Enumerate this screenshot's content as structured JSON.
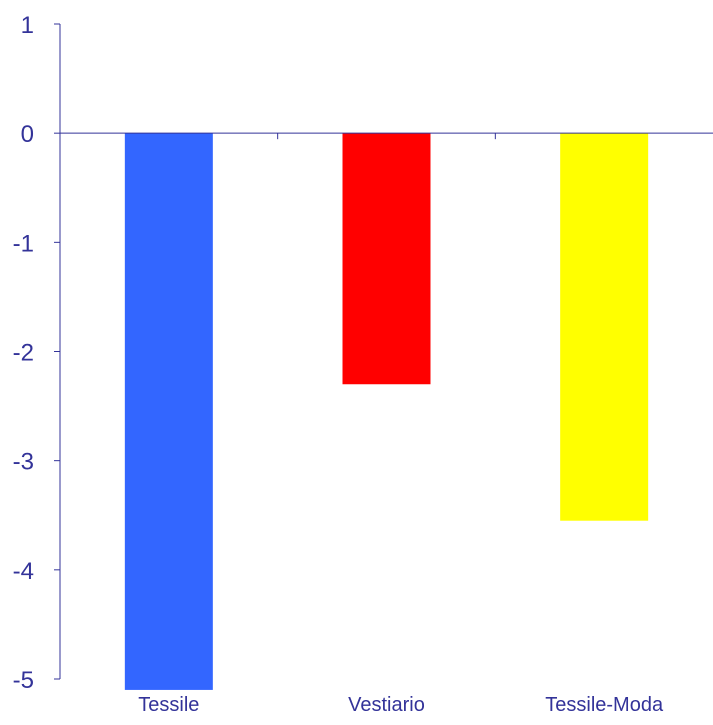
{
  "chart_data": {
    "type": "bar",
    "title": "",
    "xlabel": "",
    "ylabel": "",
    "categories": [
      "Tessile",
      "Vestiario",
      "Tessile-Moda"
    ],
    "values": [
      -5.1,
      -2.3,
      -3.55
    ],
    "bar_colors": [
      "#3366ff",
      "#ff0000",
      "#ffff00"
    ],
    "ylim": [
      -5,
      1
    ],
    "yticks": [
      1,
      0,
      -1,
      -2,
      -3,
      -4,
      -5
    ],
    "ytick_labels": [
      "1",
      "0",
      "-1",
      "-2",
      "-3",
      "-4",
      "-5"
    ],
    "grid": false,
    "legend": "none",
    "axis_color": "#333399",
    "label_color": "#333399"
  }
}
